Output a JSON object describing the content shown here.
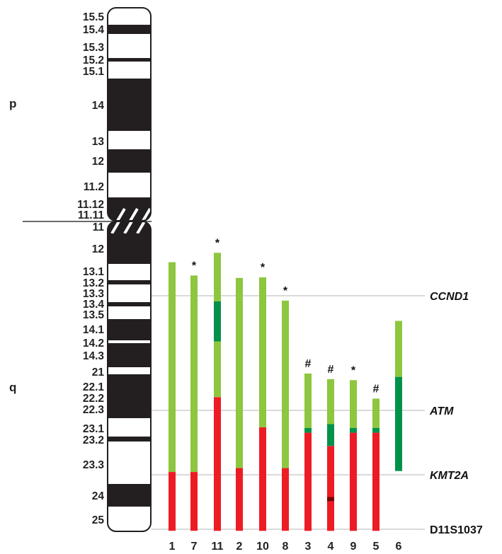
{
  "arms": {
    "p": "p",
    "q": "q"
  },
  "bands_p": [
    "15.5",
    "15.4",
    "15.3",
    "15.2",
    "15.1",
    "14",
    "13",
    "12",
    "11.2",
    "11.12"
  ],
  "band_cen_p": "11.11",
  "band_cen_q": "11",
  "bands_q": [
    "12",
    "13.1",
    "13.2",
    "13.3",
    "13.4",
    "13.5",
    "14.1",
    "14.2",
    "14.3",
    "21",
    "22.1",
    "22.2",
    "22.3",
    "23.1",
    "23.2",
    "23.3",
    "24",
    "25"
  ],
  "markers": [
    {
      "label": "CCND1",
      "italic": true
    },
    {
      "label": "ATM",
      "italic": true
    },
    {
      "label": "KMT2A",
      "italic": true
    },
    {
      "label": "D11S1037",
      "italic": false
    }
  ],
  "colors": {
    "light_green": "#8dc63f",
    "dark_green": "#00924a",
    "red": "#ed1c24",
    "dark_red": "#7a0000",
    "band_dark": "#231f20",
    "guide": "#b5b5b5"
  },
  "lanes": [
    {
      "id": "1",
      "mark": "",
      "segments": [
        {
          "from": 0.1316,
          "to": 0.8085,
          "kind": "light_green"
        },
        {
          "from": 0.8085,
          "to": 0.9983,
          "kind": "red"
        }
      ]
    },
    {
      "id": "7",
      "mark": "*",
      "segments": [
        {
          "from": 0.1745,
          "to": 0.8085,
          "kind": "light_green"
        },
        {
          "from": 0.8085,
          "to": 0.9983,
          "kind": "red"
        }
      ]
    },
    {
      "id": "11",
      "mark": "*",
      "segments": [
        {
          "from": 0.1012,
          "to": 0.258,
          "kind": "light_green"
        },
        {
          "from": 0.258,
          "to": 0.3871,
          "kind": "dark_green"
        },
        {
          "from": 0.3871,
          "to": 0.5668,
          "kind": "light_green"
        },
        {
          "from": 0.5668,
          "to": 0.9983,
          "kind": "red"
        }
      ]
    },
    {
      "id": "2",
      "mark": "",
      "segments": [
        {
          "from": 0.1821,
          "to": 0.796,
          "kind": "light_green"
        },
        {
          "from": 0.796,
          "to": 0.9983,
          "kind": "red"
        }
      ]
    },
    {
      "id": "10",
      "mark": "*",
      "segments": [
        {
          "from": 0.1804,
          "to": 0.6643,
          "kind": "light_green"
        },
        {
          "from": 0.6643,
          "to": 0.9983,
          "kind": "red"
        }
      ]
    },
    {
      "id": "8",
      "mark": "*",
      "segments": [
        {
          "from": 0.2555,
          "to": 0.796,
          "kind": "light_green"
        },
        {
          "from": 0.796,
          "to": 0.9983,
          "kind": "red"
        }
      ]
    },
    {
      "id": "3",
      "mark": "#",
      "segments": [
        {
          "from": 0.4906,
          "to": 0.6664,
          "kind": "light_green"
        },
        {
          "from": 0.6664,
          "to": 0.6817,
          "kind": "dark_green"
        },
        {
          "from": 0.6817,
          "to": 0.9983,
          "kind": "red"
        }
      ]
    },
    {
      "id": "4",
      "mark": "#",
      "segments": [
        {
          "from": 0.5087,
          "to": 0.6542,
          "kind": "light_green"
        },
        {
          "from": 0.6542,
          "to": 0.7246,
          "kind": "dark_green"
        },
        {
          "from": 0.7246,
          "to": 0.8893,
          "kind": "red"
        },
        {
          "from": 0.8893,
          "to": 0.9031,
          "kind": "dark_red"
        },
        {
          "from": 0.9031,
          "to": 0.9983,
          "kind": "red"
        }
      ]
    },
    {
      "id": "9",
      "mark": "*",
      "segments": [
        {
          "from": 0.5121,
          "to": 0.6664,
          "kind": "light_green"
        },
        {
          "from": 0.6664,
          "to": 0.6817,
          "kind": "dark_green"
        },
        {
          "from": 0.6817,
          "to": 0.9983,
          "kind": "red"
        }
      ]
    },
    {
      "id": "5",
      "mark": "#",
      "segments": [
        {
          "from": 0.5717,
          "to": 0.6664,
          "kind": "light_green"
        },
        {
          "from": 0.6664,
          "to": 0.6817,
          "kind": "dark_green"
        },
        {
          "from": 0.6817,
          "to": 0.9983,
          "kind": "red"
        }
      ]
    },
    {
      "id": "6",
      "mark": "",
      "segments": [
        {
          "from": 0.3208,
          "to": 0.5016,
          "kind": "light_green"
        },
        {
          "from": 0.5016,
          "to": 0.8052,
          "kind": "dark_green"
        }
      ]
    }
  ]
}
